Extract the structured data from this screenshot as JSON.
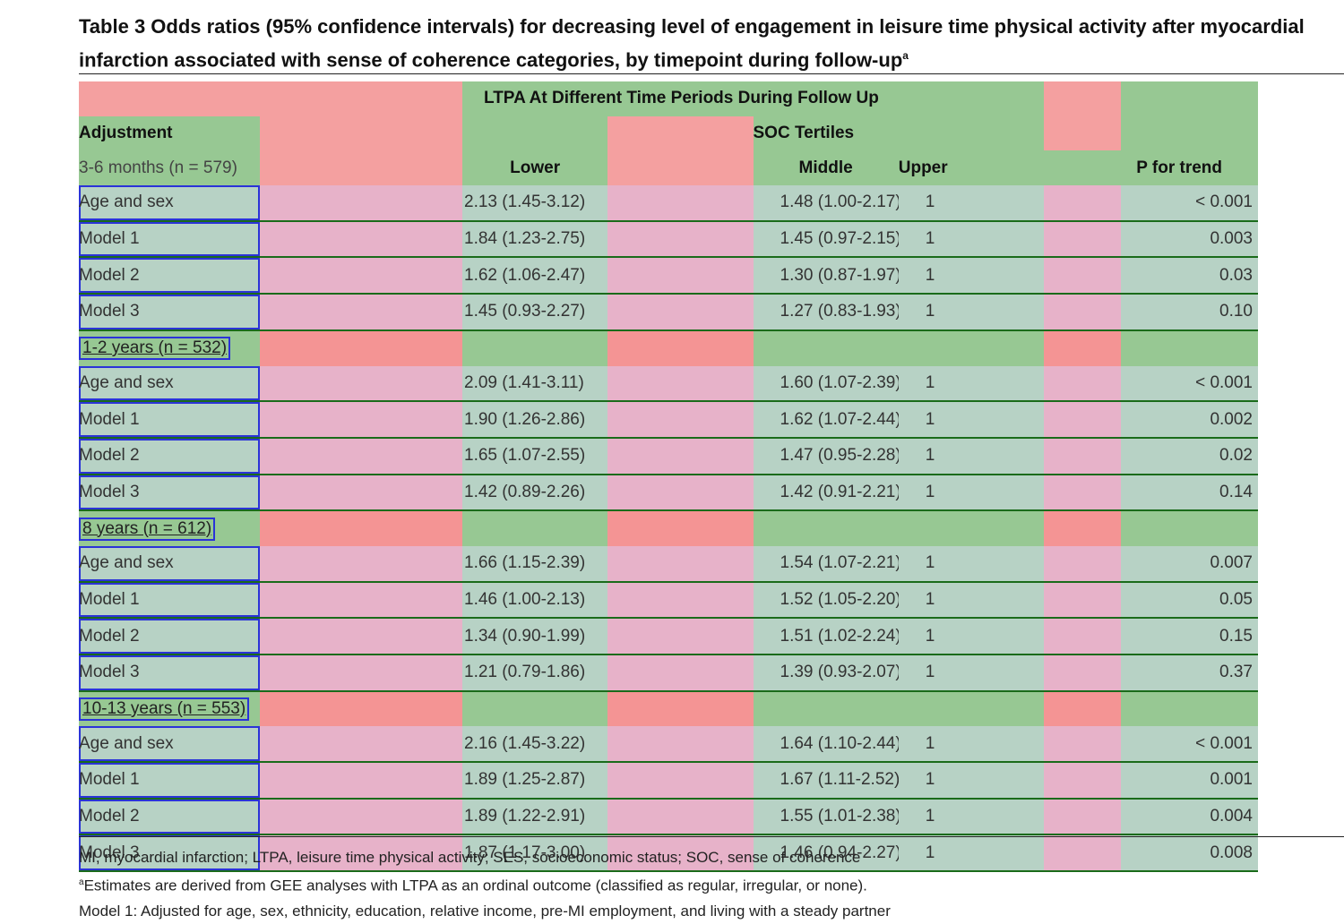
{
  "title": {
    "prefix": "Table 3 Odds ratios (95% confidence intervals) for decreasing level of engagement in leisure time physical activity after myocardial infarction associated with sense of coherence categories, by timepoint during follow-up",
    "sup": "a"
  },
  "header": {
    "span_title": "LTPA At Different Time Periods During Follow Up",
    "adjustment": "Adjustment",
    "soc_tertiles": "SOC Tertiles",
    "lower": "Lower",
    "middle": "Middle",
    "upper": "Upper",
    "p_trend": "P for trend"
  },
  "groups": [
    {
      "label": "3-6 months (n = 579)",
      "rows": [
        {
          "model": "Age and sex",
          "lower": "2.13 (1.45-3.12)",
          "middle": "1.48 (1.00-2.17)",
          "upper": "1",
          "p": "< 0.001"
        },
        {
          "model": "Model 1",
          "lower": "1.84 (1.23-2.75)",
          "middle": "1.45 (0.97-2.15)",
          "upper": "1",
          "p": "0.003"
        },
        {
          "model": "Model 2",
          "lower": "1.62 (1.06-2.47)",
          "middle": "1.30 (0.87-1.97)",
          "upper": "1",
          "p": "0.03"
        },
        {
          "model": "Model 3",
          "lower": "1.45 (0.93-2.27)",
          "middle": "1.27 (0.83-1.93)",
          "upper": "1",
          "p": "0.10"
        }
      ]
    },
    {
      "label": "1-2 years (n = 532)",
      "rows": [
        {
          "model": "Age and sex",
          "lower": "2.09 (1.41-3.11)",
          "middle": "1.60 (1.07-2.39)",
          "upper": "1",
          "p": "< 0.001"
        },
        {
          "model": "Model 1",
          "lower": "1.90 (1.26-2.86)",
          "middle": "1.62 (1.07-2.44)",
          "upper": "1",
          "p": "0.002"
        },
        {
          "model": "Model 2",
          "lower": "1.65 (1.07-2.55)",
          "middle": "1.47 (0.95-2.28)",
          "upper": "1",
          "p": "0.02"
        },
        {
          "model": "Model 3",
          "lower": "1.42 (0.89-2.26)",
          "middle": "1.42 (0.91-2.21)",
          "upper": "1",
          "p": "0.14"
        }
      ]
    },
    {
      "label": "8 years (n = 612)",
      "rows": [
        {
          "model": "Age and sex",
          "lower": "1.66 (1.15-2.39)",
          "middle": "1.54 (1.07-2.21)",
          "upper": "1",
          "p": "0.007"
        },
        {
          "model": "Model 1",
          "lower": "1.46 (1.00-2.13)",
          "middle": "1.52 (1.05-2.20)",
          "upper": "1",
          "p": "0.05"
        },
        {
          "model": "Model 2",
          "lower": "1.34 (0.90-1.99)",
          "middle": "1.51 (1.02-2.24)",
          "upper": "1",
          "p": "0.15"
        },
        {
          "model": "Model 3",
          "lower": "1.21 (0.79-1.86)",
          "middle": "1.39 (0.93-2.07)",
          "upper": "1",
          "p": "0.37"
        }
      ]
    },
    {
      "label": "10-13 years (n = 553)",
      "rows": [
        {
          "model": "Age and sex",
          "lower": "2.16 (1.45-3.22)",
          "middle": "1.64 (1.10-2.44)",
          "upper": "1",
          "p": "< 0.001"
        },
        {
          "model": "Model 1",
          "lower": "1.89 (1.25-2.87)",
          "middle": "1.67 (1.11-2.52)",
          "upper": "1",
          "p": "0.001"
        },
        {
          "model": "Model 2",
          "lower": "1.89 (1.22-2.91)",
          "middle": "1.55 (1.01-2.38)",
          "upper": "1",
          "p": "0.004"
        },
        {
          "model": "Model 3",
          "lower": "1.87 (1.17-3.00)",
          "middle": "1.46 (0.94-2.27)",
          "upper": "1",
          "p": "0.008"
        }
      ]
    }
  ],
  "footnotes": {
    "line1": "MI, myocardial infarction; LTPA, leisure time physical activity; SES, socioeconomic status; SOC, sense of coherence",
    "line2_sup": "a",
    "line2": "Estimates are derived from GEE analyses with LTPA as an ordinal outcome (classified as regular, irregular, or none).",
    "line3": "Model 1: Adjusted for age, sex, ethnicity, education, relative income, pre-MI employment, and living with a steady partner"
  }
}
